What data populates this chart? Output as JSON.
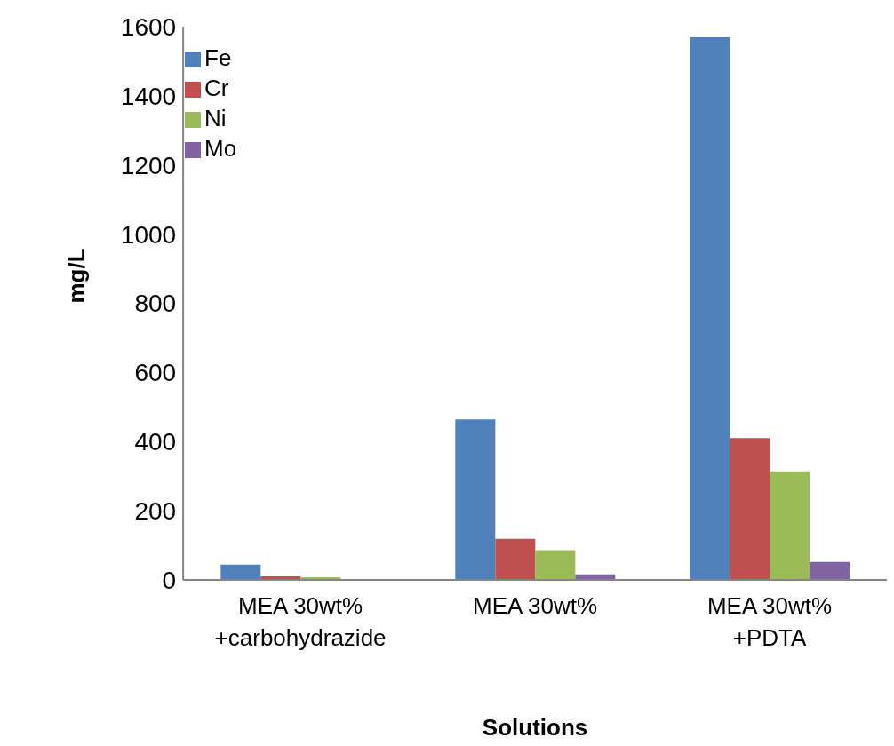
{
  "chart_data": {
    "type": "bar",
    "xlabel": "Solutions",
    "ylabel": "mg/L",
    "categories": [
      "MEA 30wt%\n+carbohydrazide",
      "MEA 30wt%",
      "MEA 30wt%\n+PDTA"
    ],
    "series": [
      {
        "name": "Fe",
        "color": "#4f81bd",
        "values": [
          44,
          464,
          1569
        ]
      },
      {
        "name": "Cr",
        "color": "#c0504d",
        "values": [
          10,
          119,
          410
        ]
      },
      {
        "name": "Ni",
        "color": "#9bbb59",
        "values": [
          8,
          86,
          314
        ]
      },
      {
        "name": "Mo",
        "color": "#8064a2",
        "values": [
          0,
          16,
          52
        ]
      }
    ],
    "ylim": [
      0,
      1600
    ],
    "yticks": [
      0,
      200,
      400,
      600,
      800,
      1000,
      1200,
      1400,
      1600
    ],
    "grid": false,
    "legend": "top left"
  }
}
